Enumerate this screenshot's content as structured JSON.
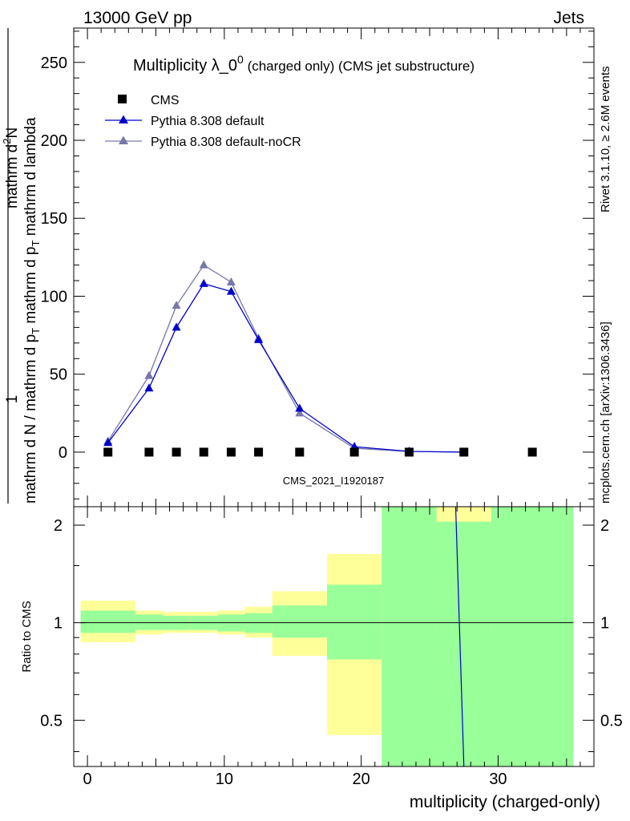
{
  "header": {
    "left": "13000 GeV pp",
    "right": "Jets"
  },
  "side": {
    "rivet": "Rivet 3.1.10, ≥ 2.6M events",
    "mcplots": "mcplots.cern.ch [arXiv:1306.3436]"
  },
  "watermark": "CMS_2021_I1920187",
  "colors": {
    "data": "#000000",
    "default": "#0000cc",
    "nocr": "#7777aa",
    "band_inner": "#99ff99",
    "band_outer": "#ffff99"
  },
  "chart_data": [
    {
      "type": "line",
      "title_main": "Multiplicity λ_0",
      "title_sup": "0",
      "title_tail": " (charged only) (CMS jet substructure)",
      "ylabel_lines": [
        "1",
        "mathrm d N / mathrm d p",
        "T",
        "mathrm d p",
        "T",
        "mathrm d lambda",
        "mathrm d",
        "2",
        "N"
      ],
      "ylim": [
        -35,
        272
      ],
      "xlim": [
        -1,
        37
      ],
      "yticks": [
        "0",
        "50",
        "100",
        "150",
        "200",
        "250"
      ],
      "ytick_values": [
        0,
        50,
        100,
        150,
        200,
        250
      ],
      "x_points": [
        1.5,
        4.5,
        6.5,
        8.5,
        10.5,
        12.5,
        15.5,
        19.5,
        23.5,
        27.5,
        32.5
      ],
      "series": [
        {
          "name": "CMS",
          "marker": "square",
          "y": [
            0,
            0,
            0,
            0,
            0,
            0,
            0,
            0,
            0,
            0,
            0
          ]
        },
        {
          "name": "Pythia 8.308 default",
          "marker": "triangle",
          "y": [
            6,
            41,
            80,
            108,
            103,
            72,
            28,
            3.5,
            0.5,
            0,
            null
          ]
        },
        {
          "name": "Pythia 8.308 default-noCR",
          "marker": "triangle",
          "y": [
            7,
            49,
            94,
            120,
            109,
            73,
            25,
            2.5,
            0.4,
            null,
            null
          ]
        }
      ]
    },
    {
      "type": "line",
      "ylabel": "Ratio to CMS",
      "xlabel": "multiplicity (charged-only)",
      "ylim": [
        0.36,
        2.28
      ],
      "xlim": [
        -1,
        37
      ],
      "yticks": [
        "0.5",
        "1",
        "2"
      ],
      "ytick_values": [
        0.5,
        1,
        2
      ],
      "xticks": [
        "0",
        "10",
        "20",
        "30"
      ],
      "xtick_values": [
        0,
        10,
        20,
        30
      ],
      "bins": [
        {
          "x0": -0.5,
          "x1": 3.5,
          "inner": [
            0.93,
            1.09
          ],
          "outer": [
            0.87,
            1.17
          ]
        },
        {
          "x0": 3.5,
          "x1": 5.5,
          "inner": [
            0.95,
            1.06
          ],
          "outer": [
            0.92,
            1.09
          ]
        },
        {
          "x0": 5.5,
          "x1": 7.5,
          "inner": [
            0.95,
            1.05
          ],
          "outer": [
            0.93,
            1.08
          ]
        },
        {
          "x0": 7.5,
          "x1": 9.5,
          "inner": [
            0.95,
            1.05
          ],
          "outer": [
            0.93,
            1.08
          ]
        },
        {
          "x0": 9.5,
          "x1": 11.5,
          "inner": [
            0.94,
            1.06
          ],
          "outer": [
            0.92,
            1.09
          ]
        },
        {
          "x0": 11.5,
          "x1": 13.5,
          "inner": [
            0.93,
            1.07
          ],
          "outer": [
            0.9,
            1.12
          ]
        },
        {
          "x0": 13.5,
          "x1": 17.5,
          "inner": [
            0.9,
            1.13
          ],
          "outer": [
            0.79,
            1.25
          ]
        },
        {
          "x0": 17.5,
          "x1": 21.5,
          "inner": [
            0.77,
            1.31
          ],
          "outer": [
            0.45,
            1.63
          ]
        },
        {
          "x0": 21.5,
          "x1": 25.5,
          "inner": [
            0.36,
            2.28
          ],
          "outer": [
            0.36,
            2.28
          ]
        },
        {
          "x0": 25.5,
          "x1": 29.5,
          "inner": [
            0.36,
            2.05
          ],
          "outer": [
            0.36,
            2.28
          ]
        },
        {
          "x0": 29.5,
          "x1": 35.5,
          "inner": [
            0.36,
            2.28
          ],
          "outer": [
            0.36,
            2.28
          ]
        }
      ],
      "ratio_line": {
        "x": [
          26.9,
          27.5
        ],
        "y": [
          2.28,
          0.36
        ]
      }
    }
  ]
}
